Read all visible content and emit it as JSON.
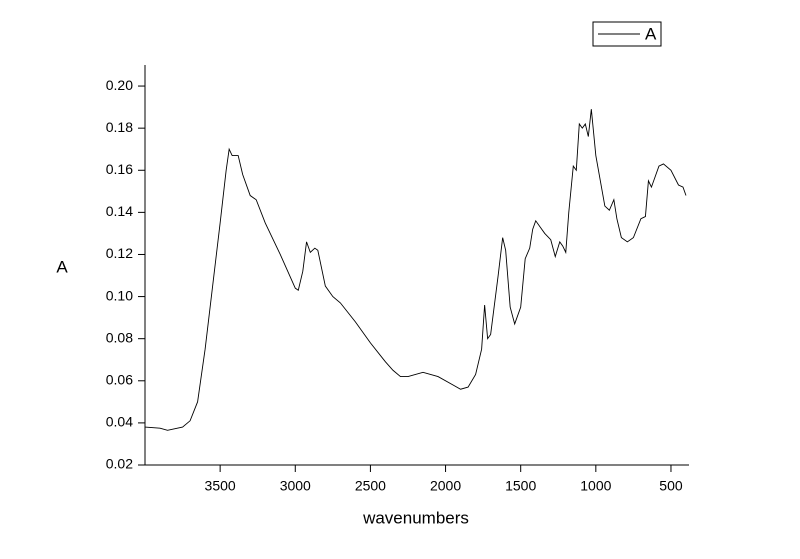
{
  "chart_data": {
    "type": "line",
    "x_label": "wavenumbers",
    "y_label": "A",
    "x": [
      4000,
      3900,
      3850,
      3750,
      3700,
      3650,
      3600,
      3550,
      3500,
      3460,
      3440,
      3420,
      3380,
      3350,
      3300,
      3260,
      3200,
      3100,
      3000,
      2980,
      2950,
      2925,
      2900,
      2870,
      2850,
      2800,
      2750,
      2700,
      2600,
      2500,
      2400,
      2350,
      2300,
      2250,
      2150,
      2050,
      1950,
      1900,
      1850,
      1800,
      1760,
      1740,
      1720,
      1700,
      1650,
      1620,
      1600,
      1570,
      1540,
      1500,
      1470,
      1440,
      1420,
      1400,
      1370,
      1340,
      1300,
      1270,
      1240,
      1220,
      1200,
      1180,
      1150,
      1130,
      1110,
      1090,
      1070,
      1050,
      1030,
      1000,
      970,
      940,
      910,
      880,
      860,
      830,
      790,
      750,
      700,
      670,
      650,
      630,
      580,
      550,
      500,
      450,
      420,
      400
    ],
    "series": [
      {
        "name": "A",
        "color": "#000000",
        "values": [
          0.038,
          0.0375,
          0.0365,
          0.038,
          0.041,
          0.05,
          0.075,
          0.105,
          0.135,
          0.16,
          0.17,
          0.167,
          0.167,
          0.158,
          0.148,
          0.146,
          0.135,
          0.12,
          0.104,
          0.103,
          0.112,
          0.126,
          0.121,
          0.123,
          0.122,
          0.105,
          0.1,
          0.097,
          0.088,
          0.078,
          0.069,
          0.065,
          0.062,
          0.062,
          0.064,
          0.062,
          0.058,
          0.056,
          0.057,
          0.063,
          0.075,
          0.096,
          0.08,
          0.082,
          0.11,
          0.128,
          0.122,
          0.095,
          0.087,
          0.095,
          0.118,
          0.123,
          0.132,
          0.136,
          0.133,
          0.13,
          0.127,
          0.119,
          0.126,
          0.124,
          0.121,
          0.14,
          0.162,
          0.16,
          0.182,
          0.18,
          0.182,
          0.176,
          0.189,
          0.167,
          0.155,
          0.143,
          0.141,
          0.146,
          0.137,
          0.128,
          0.126,
          0.128,
          0.137,
          0.138,
          0.155,
          0.152,
          0.162,
          0.163,
          0.16,
          0.153,
          0.152,
          0.148
        ]
      }
    ],
    "xlim": [
      4000,
      380
    ],
    "xticks": [
      3500,
      3000,
      2500,
      2000,
      1500,
      1000,
      500
    ],
    "ylim": [
      0.02,
      0.21
    ],
    "yticks": [
      0.02,
      0.04,
      0.06,
      0.08,
      {
        "value": 0.1,
        "label": "0.10"
      },
      0.12,
      0.14,
      0.16,
      0.18,
      {
        "value": 0.2,
        "label": "0.20"
      }
    ],
    "legend": "top-right"
  }
}
